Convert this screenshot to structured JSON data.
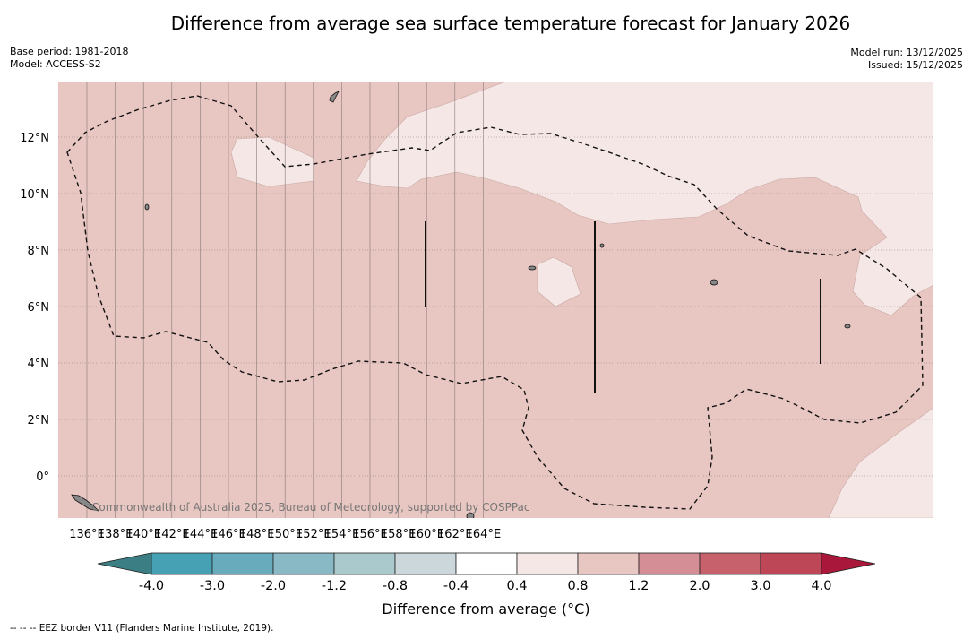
{
  "header": {
    "title": "Difference from average sea surface temperature forecast for January 2026",
    "base_period": "Base period: 1981-2018",
    "model": "Model: ACCESS-S2",
    "model_run": "Model run: 13/12/2025",
    "issued": "Issued: 15/12/2025"
  },
  "map": {
    "lon_labels": [
      "136°E",
      "138°E",
      "140°E",
      "142°E",
      "144°E",
      "146°E",
      "148°E",
      "150°E",
      "152°E",
      "154°E",
      "156°E",
      "158°E",
      "160°E",
      "162°E",
      "164°E"
    ],
    "lat_labels": [
      "12°N",
      "10°N",
      "8°N",
      "6°N",
      "4°N",
      "2°N",
      "0°"
    ],
    "attribution": "Commonwealth of Australia 2025, Bureau of Meteorology, supported by COSPPac",
    "field_color_main": "#e8c6c1",
    "field_color_light": "#f5e7e5"
  },
  "colorbar": {
    "ticks": [
      "-4.0",
      "-3.0",
      "-2.0",
      "-1.2",
      "-0.8",
      "-0.4",
      "0.4",
      "0.8",
      "1.2",
      "2.0",
      "3.0",
      "4.0"
    ],
    "colors": [
      "#45a1b3",
      "#67abbc",
      "#88b9c4",
      "#a9c9cc",
      "#cbd7da",
      "#ffffff",
      "#f5e7e5",
      "#e8c6c1",
      "#d48e95",
      "#c7626d",
      "#bd4657"
    ],
    "under_color": "#3b7f85",
    "over_color": "#a9173a",
    "label": "Difference from average (°C)"
  },
  "footnote": "--  --  -- EEZ border V11 (Flanders Marine Institute, 2019)."
}
